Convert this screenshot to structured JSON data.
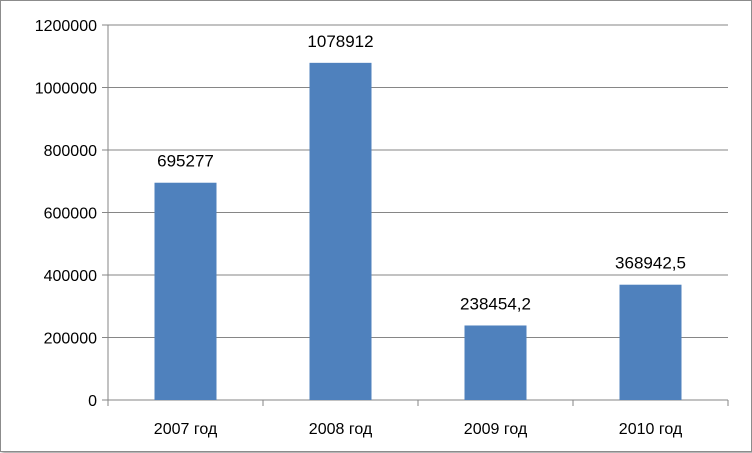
{
  "chart_data": {
    "type": "bar",
    "categories": [
      "2007 год",
      "2008 год",
      "2009 год",
      "2010 год"
    ],
    "values": [
      695277,
      1078912,
      238454.2,
      368942.5
    ],
    "data_labels": [
      "695277",
      "1078912",
      "238454,2",
      "368942,5"
    ],
    "y_ticks": [
      "0",
      "200000",
      "400000",
      "600000",
      "800000",
      "1000000",
      "1200000"
    ],
    "ylim": [
      0,
      1200000
    ],
    "grid": true,
    "legend": "none",
    "bar_color": "#4F81BD",
    "title": "",
    "xlabel": "",
    "ylabel": ""
  }
}
